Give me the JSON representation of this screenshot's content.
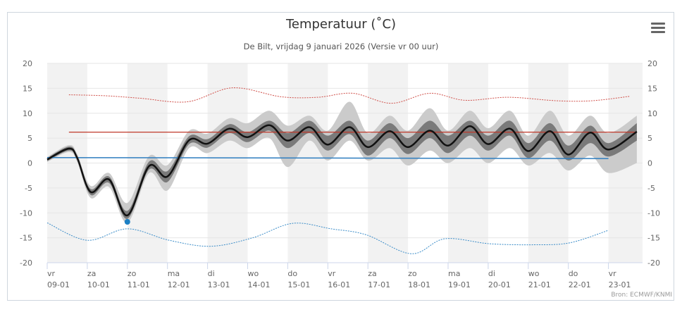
{
  "title": "Temperatuur (˚C)",
  "subtitle": "De Bilt, vrijdag 9 januari 2026 (Versie vr 00 uur)",
  "menu_icon": "hamburger-menu-icon",
  "credit": "Bron: ECMWF/KNMI",
  "chart_data": {
    "type": "line",
    "title": "Temperatuur (˚C)",
    "ylim": [
      -20,
      20
    ],
    "y_ticks": [
      "20",
      "15",
      "10",
      "5",
      "0",
      "-5",
      "-10",
      "-15",
      "-20"
    ],
    "x_ticks": [
      {
        "day": "vr",
        "date": "09-01"
      },
      {
        "day": "za",
        "date": "10-01"
      },
      {
        "day": "zo",
        "date": "11-01"
      },
      {
        "day": "ma",
        "date": "12-01"
      },
      {
        "day": "di",
        "date": "13-01"
      },
      {
        "day": "wo",
        "date": "14-01"
      },
      {
        "day": "do",
        "date": "15-01"
      },
      {
        "day": "vr",
        "date": "16-01"
      },
      {
        "day": "za",
        "date": "17-01"
      },
      {
        "day": "zo",
        "date": "18-01"
      },
      {
        "day": "ma",
        "date": "19-01"
      },
      {
        "day": "di",
        "date": "20-01"
      },
      {
        "day": "wo",
        "date": "21-01"
      },
      {
        "day": "do",
        "date": "22-01"
      },
      {
        "day": "vr",
        "date": "23-01"
      }
    ],
    "x_range": [
      "09-01 00:00",
      "23-01 17:00"
    ],
    "grid": true,
    "alternate_day_shading": true,
    "colors": {
      "median": "#111111",
      "inner_band": "#7a7a7a",
      "outer_band": "#cbcbcb",
      "normal_max": "#c0392b",
      "normal_min": "#2e7dbf",
      "record_max": "#d0504a",
      "record_min": "#3a8cc8",
      "observed": "#1a7fc4",
      "shade": "#f2f2f2"
    },
    "ensemble": {
      "time": [
        "09-01 00:00",
        "09-01 13:00",
        "09-01 18:00",
        "10-01 02:00",
        "10-01 13:00",
        "11-01 00:00",
        "11-01 13:00",
        "12-01 00:00",
        "12-01 13:00",
        "13-01 00:00",
        "13-01 13:00",
        "14-01 00:00",
        "14-01 13:00",
        "15-01 00:00",
        "15-01 13:00",
        "16-01 00:00",
        "16-01 13:00",
        "17-01 00:00",
        "17-01 13:00",
        "18-01 00:00",
        "18-01 13:00",
        "19-01 00:00",
        "19-01 13:00",
        "20-01 00:00",
        "20-01 13:00",
        "21-01 00:00",
        "21-01 13:00",
        "22-01 00:00",
        "22-01 13:00",
        "23-01 00:00",
        "23-01 17:00"
      ],
      "median": [
        0.7,
        2.9,
        1.0,
        -5.8,
        -3.3,
        -10.5,
        -0.6,
        -2.7,
        4.6,
        3.9,
        6.9,
        5.2,
        7.6,
        4.5,
        7.2,
        3.7,
        7.2,
        3.2,
        6.4,
        3.2,
        6.5,
        3.5,
        7.4,
        3.8,
        6.9,
        2.4,
        6.4,
        1.7,
        6.1,
        2.7,
        6.3
      ],
      "p25": [
        0.4,
        2.5,
        0.6,
        -6.4,
        -4.0,
        -11.2,
        -1.3,
        -3.8,
        3.8,
        3.1,
        6.0,
        4.2,
        6.5,
        3.0,
        6.0,
        2.5,
        5.8,
        1.5,
        5.0,
        1.8,
        5.0,
        2.0,
        5.5,
        2.5,
        5.5,
        1.0,
        4.5,
        0.5,
        4.0,
        1.3,
        4.5
      ],
      "p75": [
        1.0,
        3.3,
        1.4,
        -5.2,
        -2.7,
        -9.6,
        0.3,
        -1.6,
        5.4,
        4.8,
        7.8,
        6.2,
        8.5,
        6.0,
        8.5,
        5.5,
        8.5,
        4.5,
        8.0,
        5.0,
        8.5,
        5.5,
        8.5,
        5.5,
        8.5,
        4.0,
        8.0,
        3.5,
        7.5,
        4.0,
        8.0
      ],
      "p10": [
        0.2,
        2.2,
        0.2,
        -7.0,
        -4.8,
        -12.0,
        -2.0,
        -5.5,
        3.0,
        2.0,
        4.5,
        3.0,
        5.0,
        -0.8,
        4.5,
        0.5,
        4.5,
        0.5,
        3.0,
        -0.5,
        2.5,
        0.0,
        3.0,
        0.0,
        3.0,
        -0.5,
        2.0,
        -1.5,
        1.5,
        -2.0,
        0.0
      ],
      "p90": [
        1.2,
        3.6,
        1.8,
        -4.6,
        -2.0,
        -8.0,
        1.4,
        -0.4,
        6.5,
        5.9,
        9.0,
        8.0,
        10.5,
        7.5,
        9.5,
        6.5,
        12.3,
        6.0,
        9.5,
        6.5,
        11.0,
        6.5,
        10.5,
        7.0,
        10.5,
        5.5,
        10.5,
        5.5,
        9.5,
        6.0,
        9.5
      ]
    },
    "normal_max": {
      "time": [
        "09-01 13:00",
        "23-01 17:00"
      ],
      "value": [
        6.2,
        6.2
      ]
    },
    "normal_min": {
      "time": [
        "09-01 00:00",
        "23-01 00:00"
      ],
      "value": [
        1.1,
        0.9
      ]
    },
    "record_max": {
      "time": [
        "09-01 13:00",
        "10-01 11:00",
        "11-01 08:00",
        "12-01 12:00",
        "13-01 15:00",
        "14-01 20:00",
        "15-01 18:00",
        "16-01 15:00",
        "17-01 14:00",
        "18-01 13:00",
        "19-01 10:00",
        "20-01 12:00",
        "21-01 17:00",
        "22-01 14:00",
        "23-01 13:00"
      ],
      "value": [
        13.7,
        13.5,
        13.0,
        12.3,
        15.1,
        13.3,
        13.2,
        14.0,
        12.0,
        14.0,
        12.6,
        13.2,
        12.5,
        12.5,
        13.4
      ]
    },
    "record_min": {
      "time": [
        "09-01 00:00",
        "10-01 00:00",
        "11-01 00:00",
        "12-01 01:00",
        "13-01 02:00",
        "14-01 03:00",
        "15-01 03:00",
        "16-01 02:00",
        "16-01 23:00",
        "18-01 02:00",
        "18-01 22:00",
        "20-01 01:00",
        "21-01 04:00",
        "22-01 01:00",
        "23-01 00:00"
      ],
      "value": [
        -12.0,
        -15.5,
        -13.2,
        -15.5,
        -16.7,
        -15.0,
        -12.1,
        -13.2,
        -14.4,
        -18.2,
        -15.2,
        -16.2,
        -16.4,
        -16.0,
        -13.5
      ]
    },
    "observed": {
      "time": "11-01 00:00",
      "value": -11.8
    }
  }
}
